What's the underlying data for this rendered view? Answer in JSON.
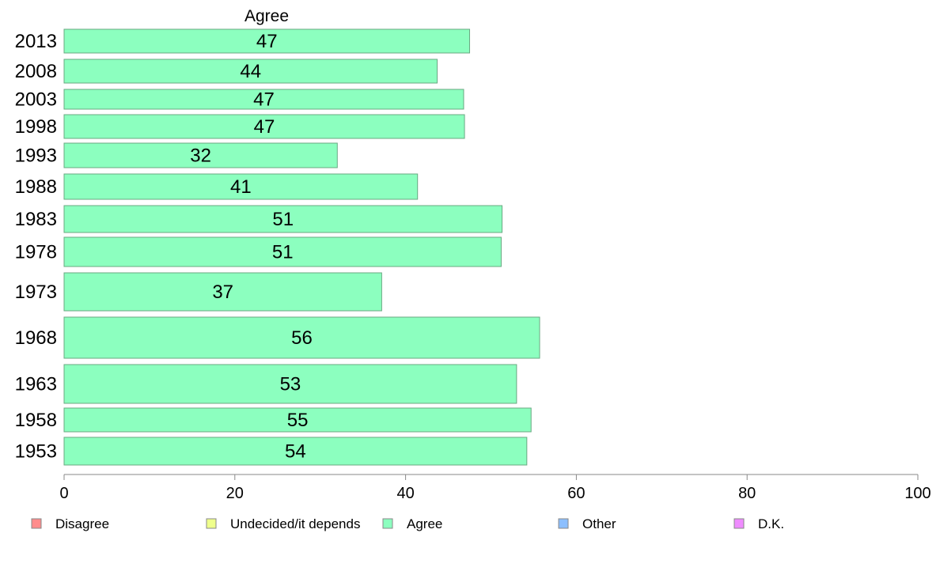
{
  "chart_data": {
    "type": "bar",
    "orientation": "horizontal",
    "title": "Agree",
    "categories": [
      "2013",
      "2008",
      "2003",
      "1998",
      "1993",
      "1988",
      "1983",
      "1978",
      "1973",
      "1968",
      "1963",
      "1958",
      "1953"
    ],
    "series": [
      {
        "name": "Agree",
        "color": "#8cffbf",
        "values": [
          47.5,
          43.7,
          46.8,
          46.9,
          32.0,
          41.4,
          51.3,
          51.2,
          37.2,
          55.7,
          53.0,
          54.7,
          54.2
        ],
        "labels": [
          "47",
          "44",
          "47",
          "47",
          "32",
          "41",
          "51",
          "51",
          "37",
          "56",
          "53",
          "55",
          "54"
        ]
      }
    ],
    "xlim": [
      0,
      100
    ],
    "xticks": [
      "0",
      "20",
      "40",
      "60",
      "80",
      "100"
    ],
    "xlabel": "",
    "ylabel": "",
    "grid": false,
    "legend_position": "bottom",
    "legend": [
      {
        "label": "Disagree",
        "color": "#ff8c8c"
      },
      {
        "label": "Undecided/it depends",
        "color": "#efff8c"
      },
      {
        "label": "Agree",
        "color": "#8cffbf"
      },
      {
        "label": "Other",
        "color": "#8cbfff"
      },
      {
        "label": "D.K.",
        "color": "#ef8cff"
      }
    ]
  }
}
